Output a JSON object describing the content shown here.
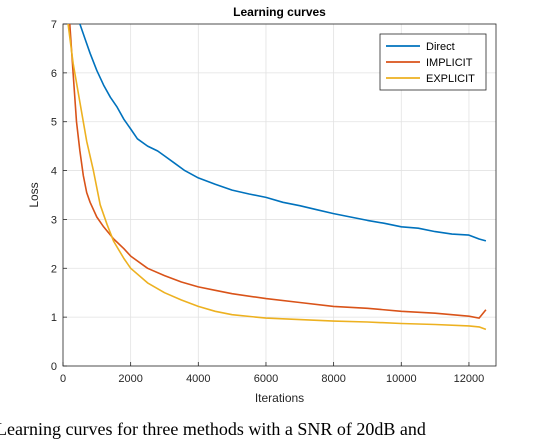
{
  "chart_data": {
    "type": "line",
    "title": "Learning curves",
    "xlabel": "Iterations",
    "ylabel": "Loss",
    "xlim": [
      0,
      12800
    ],
    "ylim": [
      0,
      7
    ],
    "xticks": [
      0,
      2000,
      4000,
      6000,
      8000,
      10000,
      12000
    ],
    "yticks": [
      0,
      1,
      2,
      3,
      4,
      5,
      6,
      7
    ],
    "grid": true,
    "legend_position": "top-right",
    "series": [
      {
        "name": "Direct",
        "color": "#0072BD",
        "x": [
          500,
          650,
          800,
          1000,
          1200,
          1400,
          1600,
          1800,
          2000,
          2200,
          2500,
          2800,
          3000,
          3300,
          3600,
          4000,
          4500,
          5000,
          5500,
          6000,
          6500,
          7000,
          7500,
          8000,
          8500,
          9000,
          9500,
          10000,
          10500,
          11000,
          11500,
          12000,
          12300,
          12500
        ],
        "y": [
          7.0,
          6.7,
          6.4,
          6.05,
          5.75,
          5.5,
          5.3,
          5.05,
          4.85,
          4.65,
          4.5,
          4.4,
          4.3,
          4.15,
          4.0,
          3.85,
          3.72,
          3.6,
          3.52,
          3.45,
          3.35,
          3.28,
          3.2,
          3.12,
          3.05,
          2.98,
          2.92,
          2.85,
          2.82,
          2.75,
          2.7,
          2.68,
          2.6,
          2.56
        ]
      },
      {
        "name": "IMPLICIT",
        "color": "#D95319",
        "x": [
          200,
          300,
          400,
          500,
          600,
          700,
          800,
          1000,
          1200,
          1500,
          1800,
          2000,
          2500,
          3000,
          3500,
          4000,
          4500,
          5000,
          6000,
          7000,
          8000,
          9000,
          10000,
          11000,
          12000,
          12300,
          12500
        ],
        "y": [
          7.0,
          6.0,
          5.0,
          4.4,
          3.9,
          3.55,
          3.35,
          3.05,
          2.85,
          2.6,
          2.4,
          2.25,
          2.0,
          1.85,
          1.72,
          1.62,
          1.55,
          1.48,
          1.38,
          1.3,
          1.22,
          1.18,
          1.12,
          1.08,
          1.02,
          0.98,
          1.15
        ]
      },
      {
        "name": "EXPLICIT",
        "color": "#EDB120",
        "x": [
          150,
          300,
          500,
          700,
          900,
          1100,
          1300,
          1500,
          1800,
          2000,
          2500,
          3000,
          3500,
          4000,
          4500,
          5000,
          6000,
          7000,
          8000,
          9000,
          10000,
          11000,
          12000,
          12300,
          12500
        ],
        "y": [
          7.0,
          6.2,
          5.4,
          4.6,
          4.0,
          3.3,
          2.9,
          2.55,
          2.2,
          2.0,
          1.7,
          1.5,
          1.35,
          1.22,
          1.12,
          1.05,
          0.98,
          0.95,
          0.92,
          0.9,
          0.87,
          0.85,
          0.82,
          0.8,
          0.75
        ]
      }
    ]
  },
  "caption": "Learning curves for three methods with a SNR of 20dB and"
}
